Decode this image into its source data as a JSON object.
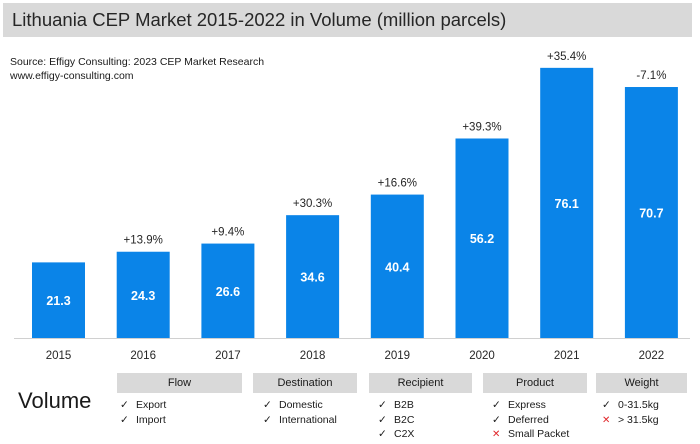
{
  "title": "Lithuania CEP Market 2015-2022 in Volume (million parcels)",
  "source_line1": "Source: Effigy Consulting: 2023 CEP Market Research",
  "source_line2": "www.effigy-consulting.com",
  "colors": {
    "bar": "#0a84e8",
    "header_bg": "#d9d9d9",
    "cross": "#e0262a"
  },
  "chart_data": {
    "type": "bar",
    "title": "Lithuania CEP Market 2015-2022 in Volume (million parcels)",
    "categories": [
      "2015",
      "2016",
      "2017",
      "2018",
      "2019",
      "2020",
      "2021",
      "2022"
    ],
    "values": [
      21.3,
      24.3,
      26.6,
      34.6,
      40.4,
      56.2,
      76.1,
      70.7
    ],
    "value_labels": [
      "21.3",
      "24.3",
      "26.6",
      "34.6",
      "40.4",
      "56.2",
      "76.1",
      "70.7"
    ],
    "growth_labels": [
      "",
      "+13.9%",
      "+9.4%",
      "+30.3%",
      "+16.6%",
      "+39.3%",
      "+35.4%",
      "-7.1%"
    ],
    "xlabel": "",
    "ylabel": "",
    "ylim": [
      0,
      80
    ],
    "grid": false,
    "legend": "none"
  },
  "volume_label": "Volume",
  "segments": [
    {
      "name": "Flow",
      "items": [
        {
          "mark": "check",
          "text": "Export"
        },
        {
          "mark": "check",
          "text": "Import"
        }
      ]
    },
    {
      "name": "Destination",
      "items": [
        {
          "mark": "check",
          "text": "Domestic"
        },
        {
          "mark": "check",
          "text": "International"
        }
      ]
    },
    {
      "name": "Recipient",
      "items": [
        {
          "mark": "check",
          "text": "B2B"
        },
        {
          "mark": "check",
          "text": "B2C"
        },
        {
          "mark": "check",
          "text": "C2X"
        }
      ]
    },
    {
      "name": "Product",
      "items": [
        {
          "mark": "check",
          "text": "Express"
        },
        {
          "mark": "check",
          "text": "Deferred"
        },
        {
          "mark": "cross",
          "text": "Small Packet"
        }
      ]
    },
    {
      "name": "Weight",
      "items": [
        {
          "mark": "check",
          "text": "0-31.5kg"
        },
        {
          "mark": "cross",
          "text": "> 31.5kg"
        }
      ]
    }
  ]
}
